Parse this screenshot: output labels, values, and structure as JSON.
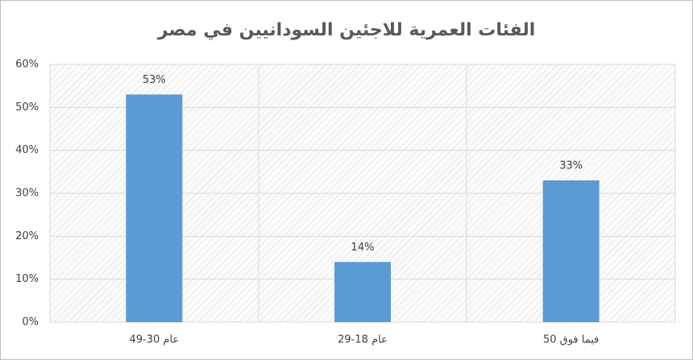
{
  "chart_data": {
    "type": "bar",
    "title": "الفئات العمرية للاجئين السودانيين في مصر",
    "categories": [
      "49-30 عام",
      "29-18 عام",
      "50 فيما فوق"
    ],
    "values": [
      53,
      14,
      33
    ],
    "value_labels": [
      "53%",
      "14%",
      "33%"
    ],
    "color": "#5b9bd5",
    "ylim": [
      0,
      60
    ],
    "yticks": [
      {
        "value": 0,
        "label": "0%"
      },
      {
        "value": 10,
        "label": "10%"
      },
      {
        "value": 20,
        "label": "20%"
      },
      {
        "value": 30,
        "label": "30%"
      },
      {
        "value": 40,
        "label": "40%"
      },
      {
        "value": 50,
        "label": "50%"
      },
      {
        "value": 60,
        "label": "60%"
      }
    ],
    "grid": true
  }
}
